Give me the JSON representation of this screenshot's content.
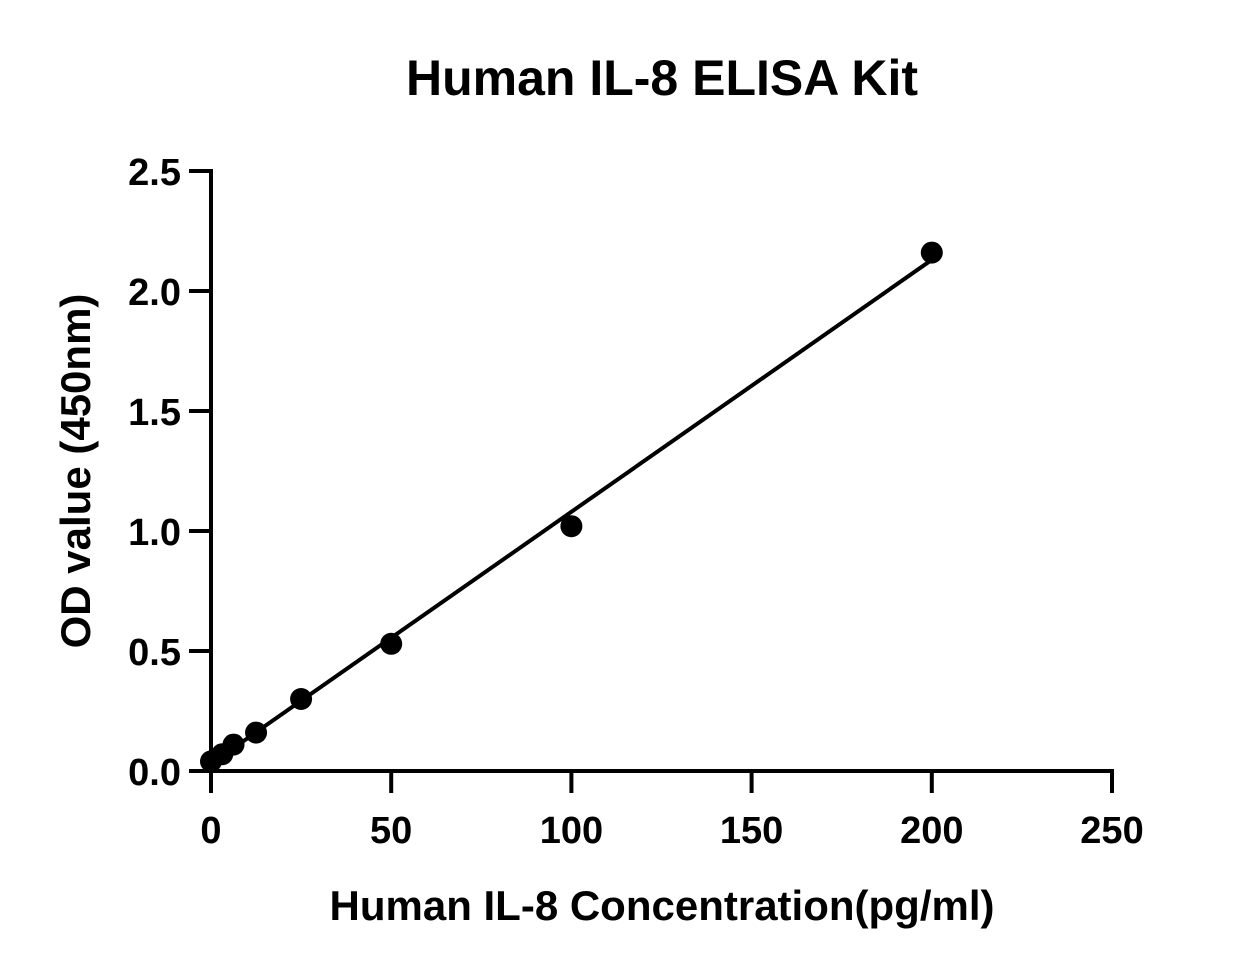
{
  "chart_data": {
    "type": "scatter",
    "title": "Human IL-8 ELISA Kit",
    "xlabel": "Human IL-8 Concentration(pg/ml)",
    "ylabel": "OD value (450nm)",
    "xlim": [
      0,
      250
    ],
    "ylim": [
      0,
      2.5
    ],
    "xticks": [
      "0",
      "50",
      "100",
      "150",
      "200",
      "250"
    ],
    "yticks": [
      "0.0",
      "0.5",
      "1.0",
      "1.5",
      "2.0",
      "2.5"
    ],
    "grid": false,
    "series": [
      {
        "points": [
          {
            "x": 0,
            "y": 0.04
          },
          {
            "x": 3.125,
            "y": 0.07
          },
          {
            "x": 6.25,
            "y": 0.11
          },
          {
            "x": 12.5,
            "y": 0.16
          },
          {
            "x": 25,
            "y": 0.3
          },
          {
            "x": 50,
            "y": 0.53
          },
          {
            "x": 100,
            "y": 1.02
          },
          {
            "x": 200,
            "y": 2.16
          }
        ]
      }
    ],
    "fit_line": {
      "x_start": 0,
      "y_start": 0.03,
      "x_end": 200,
      "y_end": 2.13
    },
    "colors": {
      "marker": "#000000",
      "line": "#000000",
      "axis": "#000000"
    }
  }
}
